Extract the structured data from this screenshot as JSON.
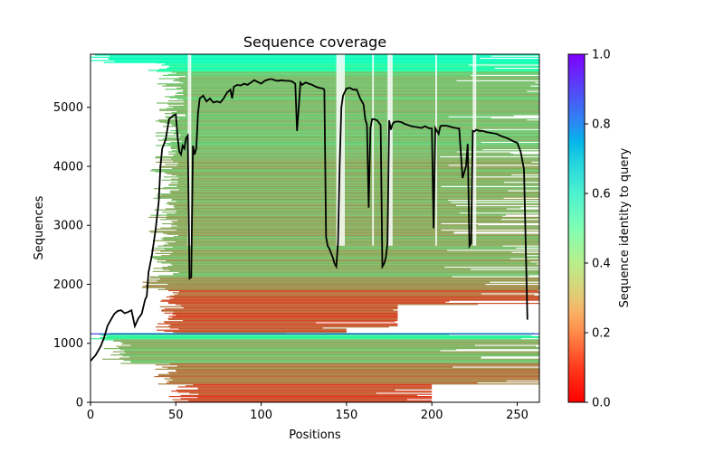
{
  "chart_data": {
    "type": "heatmap",
    "title": "Sequence coverage",
    "xlabel": "Positions",
    "ylabel": "Sequences",
    "xlim": [
      0,
      263
    ],
    "ylim": [
      0,
      5900
    ],
    "xticks": [
      0,
      50,
      100,
      150,
      200,
      250
    ],
    "yticks": [
      0,
      1000,
      2000,
      3000,
      4000,
      5000
    ],
    "grid": false,
    "colorbar": {
      "label": "Sequence identity to query",
      "range": [
        0,
        1
      ],
      "ticks": [
        "0.0",
        "0.2",
        "0.4",
        "0.6",
        "0.8",
        "1.0"
      ],
      "colormap": "rainbow_r"
    },
    "divider_line": {
      "y": 1160,
      "color": "#3333dd"
    },
    "coverage_line": {
      "name": "coverage",
      "color": "#000000",
      "x": [
        0,
        3,
        6,
        8,
        10,
        12,
        14,
        16,
        18,
        20,
        22,
        24,
        26,
        28,
        30,
        32,
        33,
        34,
        36,
        38,
        40,
        41,
        42,
        44,
        46,
        48,
        49,
        50,
        51,
        52,
        53,
        54,
        55,
        56,
        57,
        58,
        59,
        60,
        61,
        62,
        63,
        64,
        66,
        68,
        70,
        72,
        74,
        76,
        78,
        80,
        82,
        83,
        84,
        86,
        88,
        90,
        92,
        94,
        96,
        98,
        100,
        102,
        104,
        106,
        108,
        110,
        112,
        114,
        116,
        118,
        120,
        121,
        122,
        123,
        124,
        126,
        128,
        130,
        132,
        134,
        136,
        137,
        138,
        139,
        140,
        142,
        143,
        144,
        145,
        146,
        147,
        148,
        150,
        152,
        154,
        156,
        158,
        160,
        161,
        162,
        163,
        164,
        165,
        166,
        168,
        170,
        171,
        172,
        173,
        174,
        175,
        176,
        177,
        178,
        180,
        182,
        184,
        186,
        188,
        190,
        192,
        194,
        196,
        198,
        200,
        201,
        202,
        203,
        204,
        205,
        206,
        208,
        210,
        212,
        214,
        216,
        218,
        220,
        221,
        222,
        223,
        224,
        225,
        226,
        228,
        230,
        232,
        234,
        236,
        238,
        240,
        242,
        244,
        246,
        248,
        250,
        252,
        254,
        256,
        258,
        260,
        261,
        262
      ],
      "y": [
        700,
        800,
        950,
        1100,
        1300,
        1400,
        1500,
        1550,
        1560,
        1510,
        1530,
        1560,
        1290,
        1420,
        1500,
        1740,
        1800,
        2200,
        2500,
        2900,
        3400,
        4000,
        4300,
        4450,
        4800,
        4850,
        4870,
        4880,
        4500,
        4250,
        4200,
        4350,
        4300,
        4480,
        4520,
        2100,
        2120,
        4350,
        4200,
        4300,
        4900,
        5150,
        5200,
        5100,
        5150,
        5080,
        5100,
        5080,
        5150,
        5250,
        5300,
        5150,
        5350,
        5380,
        5370,
        5400,
        5380,
        5420,
        5460,
        5430,
        5400,
        5450,
        5470,
        5480,
        5460,
        5450,
        5460,
        5450,
        5450,
        5440,
        5400,
        4600,
        5000,
        5420,
        5380,
        5420,
        5400,
        5380,
        5350,
        5330,
        5320,
        5300,
        2800,
        2650,
        2600,
        2450,
        2350,
        2300,
        2700,
        4000,
        5000,
        5200,
        5320,
        5330,
        5300,
        5300,
        5150,
        5050,
        4800,
        4700,
        3300,
        4650,
        4800,
        4800,
        4780,
        4700,
        2300,
        2350,
        2450,
        2700,
        4780,
        4620,
        4720,
        4750,
        4760,
        4750,
        4720,
        4700,
        4680,
        4670,
        4660,
        4650,
        4680,
        4650,
        4640,
        2950,
        4650,
        4600,
        4550,
        4680,
        4690,
        4690,
        4680,
        4660,
        4650,
        4640,
        3800,
        4000,
        4380,
        2650,
        2700,
        4600,
        4590,
        4620,
        4600,
        4600,
        4580,
        4570,
        4560,
        4550,
        4520,
        4500,
        4480,
        4450,
        4420,
        4400,
        4250,
        3950,
        1400
      ]
    },
    "coverage_bands": [
      {
        "rows": [
          5750,
          5900
        ],
        "start": 0,
        "end": 263,
        "identity": 0.52
      },
      {
        "rows": [
          5600,
          5750
        ],
        "start": 35,
        "end": 263,
        "identity": 0.45
      },
      {
        "rows": [
          4200,
          5600
        ],
        "start": 42,
        "end": 263,
        "identity": 0.27
      },
      {
        "rows": [
          2100,
          4200
        ],
        "start": 38,
        "end": 263,
        "identity": 0.24
      },
      {
        "rows": [
          1900,
          2100
        ],
        "start": 34,
        "end": 263,
        "identity": 0.2
      },
      {
        "rows": [
          1650,
          1900
        ],
        "start": 40,
        "end": 263,
        "identity": 0.13
      },
      {
        "rows": [
          1250,
          1650
        ],
        "start": 42,
        "end": 180,
        "identity": 0.11
      },
      {
        "rows": [
          1160,
          1250
        ],
        "start": 42,
        "end": 150,
        "identity": 0.12
      },
      {
        "rows": [
          1050,
          1160
        ],
        "start": 0,
        "end": 263,
        "identity": 0.42
      },
      {
        "rows": [
          650,
          1050
        ],
        "start": 10,
        "end": 263,
        "identity": 0.25
      },
      {
        "rows": [
          300,
          650
        ],
        "start": 40,
        "end": 263,
        "identity": 0.15
      },
      {
        "rows": [
          0,
          300
        ],
        "start": 50,
        "end": 200,
        "identity": 0.1
      }
    ],
    "gap_columns": [
      57,
      58,
      144,
      145,
      146,
      147,
      148,
      165,
      174,
      175,
      176,
      202,
      224,
      225
    ]
  }
}
